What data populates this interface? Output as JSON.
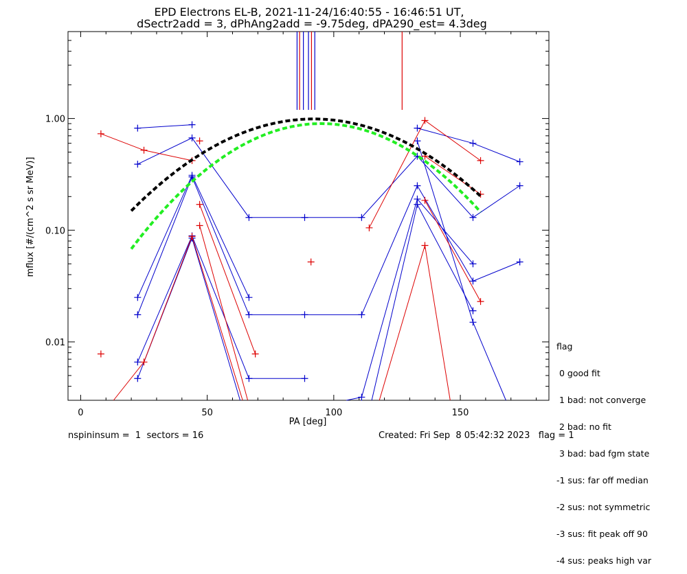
{
  "title": "EPD Electrons EL-B, 2021-11-24/16:40:55 - 16:46:51 UT,",
  "subtitle": "dSectr2add = 3, dPhAng2add = -9.75deg, dPA290_est=   4.3deg",
  "footer": {
    "left": "nspininsum =  1  sectors = 16",
    "right": "Created: Fri Sep  8 05:42:32 2023   flag = 1"
  },
  "legend": {
    "title": "flag",
    "items": [
      " 0 good fit",
      " 1 bad: not converge",
      " 2 bad: no fit",
      " 3 bad: bad fgm state",
      "-1 sus: far off median",
      "-2 sus: not symmetric",
      "-3 sus: fit peak off 90",
      "-4 sus: peaks high var"
    ]
  },
  "colors": {
    "blue": "#0000cc",
    "red": "#dd0000",
    "black": "#000000",
    "green": "#22ee22"
  },
  "chart_data": {
    "type": "line",
    "xlabel": "PA [deg]",
    "ylabel": "mflux [#/(cm^2 s sr MeV)]",
    "xlim": [
      -5,
      185
    ],
    "ylim": [
      0.003,
      6
    ],
    "yscale": "log",
    "xticks": [
      0,
      50,
      100,
      150
    ],
    "xtick_labels": [
      "0",
      "50",
      "100",
      "150"
    ],
    "yticks": [
      0.01,
      0.1,
      1.0
    ],
    "ytick_labels": [
      "0.01",
      "0.10",
      "1.00"
    ],
    "series": [
      {
        "color": "blue",
        "points": [
          [
            22.5,
            0.82
          ],
          [
            44,
            0.88
          ]
        ]
      },
      {
        "color": "blue",
        "points": [
          [
            22.5,
            0.39
          ],
          [
            44,
            0.67
          ],
          [
            66.5,
            0.13
          ],
          [
            88.5,
            0.13
          ],
          [
            111,
            0.13
          ],
          [
            133,
            0.46
          ],
          [
            155,
            0.13
          ],
          [
            173.5,
            0.25
          ]
        ]
      },
      {
        "color": "blue",
        "points": [
          [
            22.5,
            0.025
          ],
          [
            44,
            0.31
          ],
          [
            66.5,
            0.025
          ]
        ]
      },
      {
        "color": "blue",
        "points": [
          [
            22.5,
            0.0175
          ],
          [
            44,
            0.3
          ],
          [
            66.5,
            0.0175
          ],
          [
            88.5,
            0.0175
          ],
          [
            111,
            0.0175
          ],
          [
            133,
            0.25
          ],
          [
            155,
            0.035
          ],
          [
            173.5,
            0.052
          ]
        ]
      },
      {
        "color": "blue",
        "points": [
          [
            22.5,
            0.0066
          ],
          [
            44,
            0.089
          ],
          [
            66.5,
            0.0047
          ],
          [
            88.5,
            0.0047
          ]
        ]
      },
      {
        "color": "blue",
        "points": [
          [
            22.5,
            0.0047
          ],
          [
            44,
            0.085
          ],
          [
            63,
            0.002
          ]
        ]
      },
      {
        "color": "blue",
        "points": [
          [
            133,
            0.82
          ],
          [
            155,
            0.6
          ],
          [
            173.5,
            0.41
          ]
        ]
      },
      {
        "color": "blue",
        "points": [
          [
            105,
            0.0025
          ],
          [
            111,
            0.0032
          ],
          [
            133,
            0.19
          ],
          [
            155,
            0.05
          ]
        ]
      },
      {
        "color": "blue",
        "points": [
          [
            115,
            0.002
          ],
          [
            133,
            0.17
          ],
          [
            155,
            0.019
          ]
        ]
      },
      {
        "color": "blue",
        "points": [
          [
            133,
            0.63
          ],
          [
            155,
            0.015
          ],
          [
            168,
            0.002
          ]
        ]
      },
      {
        "color": "red",
        "points": [
          [
            8,
            0.73
          ],
          [
            25,
            0.52
          ],
          [
            44,
            0.42
          ]
        ]
      },
      {
        "color": "red",
        "points": [
          [
            47,
            0.63
          ]
        ]
      },
      {
        "color": "red",
        "points": [
          [
            47,
            0.17
          ],
          [
            69,
            0.0078
          ]
        ]
      },
      {
        "color": "red",
        "points": [
          [
            47,
            0.11
          ],
          [
            66,
            0.002
          ]
        ]
      },
      {
        "color": "red",
        "points": [
          [
            8,
            0.0078
          ]
        ]
      },
      {
        "color": "red",
        "points": [
          [
            13,
            0.0028
          ],
          [
            25,
            0.0066
          ],
          [
            44,
            0.088
          ],
          [
            64,
            0.002
          ]
        ]
      },
      {
        "color": "red",
        "points": [
          [
            91,
            0.052
          ]
        ]
      },
      {
        "color": "red",
        "points": [
          [
            114,
            0.105
          ],
          [
            136,
            0.96
          ],
          [
            158,
            0.42
          ]
        ]
      },
      {
        "color": "red",
        "points": [
          [
            136,
            0.46
          ],
          [
            158,
            0.21
          ]
        ]
      },
      {
        "color": "red",
        "points": [
          [
            136,
            0.185
          ],
          [
            158,
            0.023
          ]
        ]
      },
      {
        "color": "red",
        "points": [
          [
            118,
            0.002
          ],
          [
            136,
            0.073
          ],
          [
            146,
            0.002
          ]
        ]
      }
    ],
    "fits": [
      {
        "color": "black",
        "amplitude": 0.99,
        "center": 92,
        "sigma": 37,
        "x": [
          20,
          158
        ]
      },
      {
        "color": "green",
        "amplitude": 0.9,
        "center": 95,
        "sigma": 33,
        "x": [
          20,
          158
        ]
      }
    ],
    "vertical_markers": [
      {
        "x": 85.5,
        "color": "blue"
      },
      {
        "x": 86.5,
        "color": "red"
      },
      {
        "x": 88.0,
        "color": "blue"
      },
      {
        "x": 90.0,
        "color": "blue"
      },
      {
        "x": 91.2,
        "color": "red"
      },
      {
        "x": 92.5,
        "color": "blue"
      },
      {
        "x": 127,
        "color": "red"
      }
    ]
  }
}
